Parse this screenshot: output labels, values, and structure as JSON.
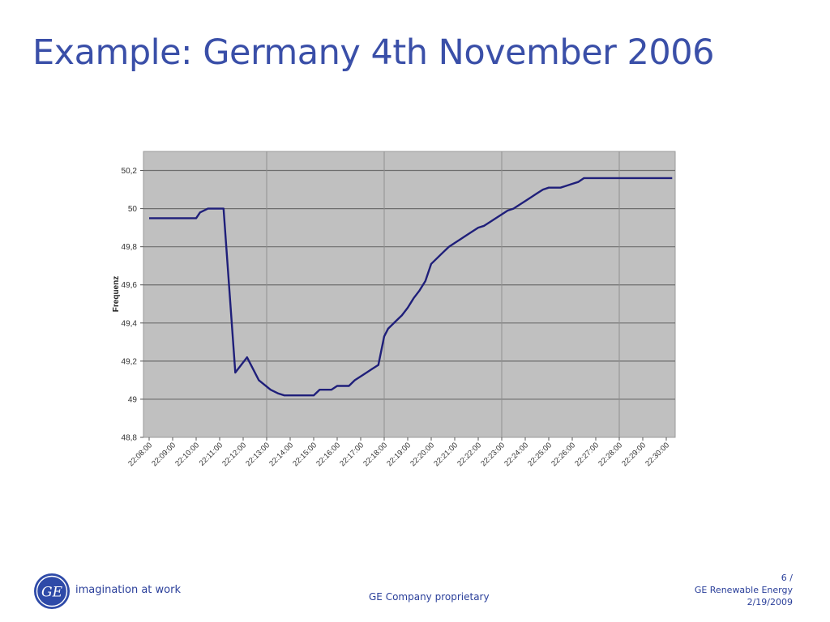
{
  "slide": {
    "title": "Example: Germany 4th November 2006",
    "footer": {
      "tagline": "imagination at work",
      "logo_text": "GE",
      "proprietary": "GE Company proprietary",
      "page": "6 /",
      "division": "GE Renewable Energy",
      "date": "2/19/2009"
    },
    "colors": {
      "title": "#3a4fa8",
      "footer_text": "#2a3f9a",
      "plot_background": "#c0c0c0",
      "line": "#1f1f7a"
    }
  },
  "chart_data": {
    "type": "line",
    "title": "",
    "xlabel": "",
    "ylabel": "Frequenz",
    "ylim": [
      48.8,
      50.3
    ],
    "y_ticks": [
      "48,8",
      "49",
      "49,2",
      "49,4",
      "49,6",
      "49,8",
      "50",
      "50,2"
    ],
    "x_tick_labels": [
      "22:08:00",
      "22:09:00",
      "22:10:00",
      "22:11:00",
      "22:12:00",
      "22:13:00",
      "22:14:00",
      "22:15:00",
      "22:16:00",
      "22:17:00",
      "22:18:00",
      "22:19:00",
      "22:20:00",
      "22:21:00",
      "22:22:00",
      "22:23:00",
      "22:24:00",
      "22:25:00",
      "22:26:00",
      "22:27:00",
      "22:28:00",
      "22:29:00",
      "22:30:00"
    ],
    "grid": {
      "horizontal": true,
      "vertical_every_n_ticks": 5
    },
    "legend": "none",
    "series": [
      {
        "x": [
          "22:08:00",
          "22:08:30",
          "22:09:00",
          "22:09:30",
          "22:10:00",
          "22:10:10",
          "22:10:30",
          "22:10:40",
          "22:11:10",
          "22:11:40",
          "22:12:10",
          "22:12:40",
          "22:13:10",
          "22:13:30",
          "22:13:45",
          "22:14:00",
          "22:14:15",
          "22:14:30",
          "22:14:45",
          "22:15:00",
          "22:15:15",
          "22:15:30",
          "22:15:45",
          "22:16:00",
          "22:16:15",
          "22:16:30",
          "22:16:45",
          "22:17:00",
          "22:17:15",
          "22:17:30",
          "22:17:45",
          "22:18:00",
          "22:18:10",
          "22:18:30",
          "22:18:45",
          "22:19:00",
          "22:19:15",
          "22:19:30",
          "22:19:45",
          "22:20:00",
          "22:20:15",
          "22:20:30",
          "22:20:45",
          "22:21:00",
          "22:21:15",
          "22:21:30",
          "22:21:45",
          "22:22:00",
          "22:22:15",
          "22:22:30",
          "22:22:45",
          "22:23:00",
          "22:23:15",
          "22:23:30",
          "22:23:45",
          "22:24:00",
          "22:24:15",
          "22:24:30",
          "22:24:45",
          "22:25:00",
          "22:25:15",
          "22:25:30",
          "22:25:45",
          "22:26:00",
          "22:26:15",
          "22:26:30",
          "22:26:45",
          "22:27:00",
          "22:27:15",
          "22:27:30",
          "22:27:45",
          "22:28:00",
          "22:28:15",
          "22:28:30",
          "22:28:45",
          "22:29:00",
          "22:29:15",
          "22:29:30",
          "22:29:45",
          "22:30:00",
          "22:30:15"
        ],
        "y": [
          49.95,
          49.95,
          49.95,
          49.95,
          49.95,
          49.98,
          50.0,
          50.0,
          50.0,
          49.14,
          49.22,
          49.1,
          49.05,
          49.03,
          49.02,
          49.02,
          49.02,
          49.02,
          49.02,
          49.02,
          49.05,
          49.05,
          49.05,
          49.07,
          49.07,
          49.07,
          49.1,
          49.12,
          49.14,
          49.16,
          49.18,
          49.33,
          49.37,
          49.41,
          49.44,
          49.48,
          49.53,
          49.57,
          49.62,
          49.71,
          49.74,
          49.77,
          49.8,
          49.82,
          49.84,
          49.86,
          49.88,
          49.9,
          49.91,
          49.93,
          49.95,
          49.97,
          49.99,
          50.0,
          50.02,
          50.04,
          50.06,
          50.08,
          50.1,
          50.11,
          50.11,
          50.11,
          50.12,
          50.13,
          50.14,
          50.16,
          50.16,
          50.16,
          50.16,
          50.16,
          50.16,
          50.16,
          50.16,
          50.16,
          50.16,
          50.16,
          50.16,
          50.16,
          50.16,
          50.16,
          50.16
        ]
      }
    ]
  }
}
